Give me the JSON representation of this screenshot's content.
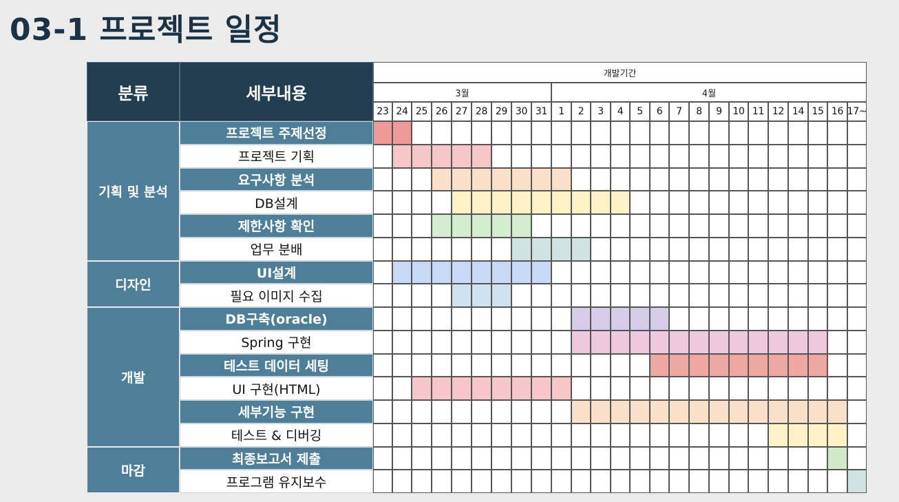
{
  "title": "03-1 프로젝트 일정",
  "headers": {
    "category": "분류",
    "detail": "세부내용",
    "period": "개발기간",
    "month_march": "3월",
    "month_april": "4월"
  },
  "days": [
    "23",
    "24",
    "25",
    "26",
    "27",
    "28",
    "29",
    "30",
    "31",
    "1",
    "2",
    "3",
    "4",
    "5",
    "6",
    "7",
    "8",
    "9",
    "10",
    "11",
    "12",
    "14",
    "15",
    "16",
    "17~"
  ],
  "categories": [
    {
      "label": "기획 및 분석",
      "rows": 6
    },
    {
      "label": "디자인",
      "rows": 2
    },
    {
      "label": "개발",
      "rows": 6
    },
    {
      "label": "마감",
      "rows": 2
    }
  ],
  "tasks": [
    {
      "label": "프로젝트 주제선정",
      "start": 0,
      "span": 2,
      "color": "#ee9b98"
    },
    {
      "label": "프로젝트 기획",
      "start": 1,
      "span": 5,
      "color": "#f6c6c9"
    },
    {
      "label": "요구사항 분석",
      "start": 3,
      "span": 7,
      "color": "#fbe0c9"
    },
    {
      "label": "DB설계",
      "start": 4,
      "span": 9,
      "color": "#fef1c6"
    },
    {
      "label": "제한사항 확인",
      "start": 3,
      "span": 5,
      "color": "#d3ecd0"
    },
    {
      "label": "업무 분배",
      "start": 7,
      "span": 4,
      "color": "#cfe3e3"
    },
    {
      "label": "UI설계",
      "start": 1,
      "span": 8,
      "color": "#c8d9f6"
    },
    {
      "label": "필요 이미지 수집",
      "start": 4,
      "span": 3,
      "color": "#cfe2f0"
    },
    {
      "label": "DB구축(oracle)",
      "start": 10,
      "span": 5,
      "color": "#d6cbe8"
    },
    {
      "label": "Spring 구현",
      "start": 10,
      "span": 13,
      "color": "#eec9dd"
    },
    {
      "label": "테스트 데이터 세팅",
      "start": 14,
      "span": 9,
      "color": "#eea8a3"
    },
    {
      "label": "UI 구현(HTML)",
      "start": 2,
      "span": 8,
      "color": "#f6c6c9"
    },
    {
      "label": "세부기능 구현",
      "start": 10,
      "span": 14,
      "color": "#fbe0c9"
    },
    {
      "label": "테스트 & 디버깅",
      "start": 20,
      "span": 4,
      "color": "#fef1c6"
    },
    {
      "label": "최종보고서 제출",
      "start": 23,
      "span": 1,
      "color": "#cfe9c9"
    },
    {
      "label": "프로그램 유지보수",
      "start": 24,
      "span": 1,
      "color": "#cfe3e3"
    }
  ]
}
